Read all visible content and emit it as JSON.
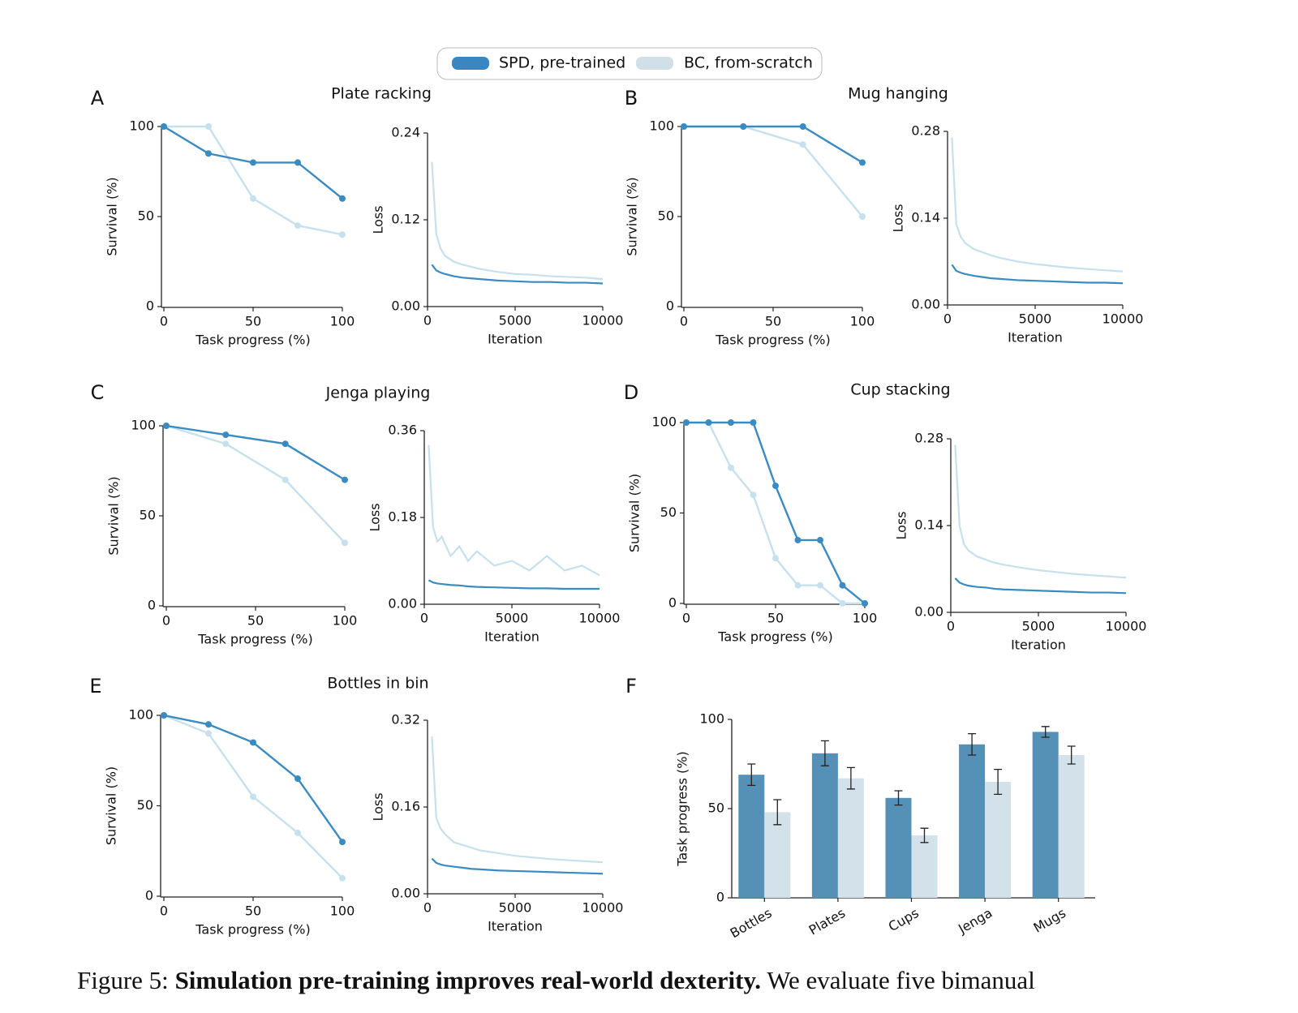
{
  "legend": [
    {
      "name": "SPD, pre-trained",
      "color": "#3a86c0"
    },
    {
      "name": "BC, from-scratch",
      "color": "#d0dfe8"
    }
  ],
  "chart_data": [
    {
      "type": "line",
      "panel": "A",
      "title": "Plate racking",
      "xlabel": "Task progress (%)",
      "ylabel": "Survival (%)",
      "markers": true,
      "x": [
        0,
        25,
        50,
        75,
        100
      ],
      "xlim": [
        0,
        100
      ],
      "xticks": [
        0,
        50,
        100
      ],
      "ylim": [
        0,
        100
      ],
      "yticks": [
        0,
        50,
        100
      ],
      "series": [
        {
          "color": "#3a8bc2",
          "values": [
            100,
            85,
            80,
            80,
            60
          ]
        },
        {
          "color": "#c6e0ee",
          "values": [
            100,
            100,
            60,
            45,
            40
          ]
        }
      ]
    },
    {
      "type": "line",
      "xlabel": "Iteration",
      "ylabel": "Loss",
      "markers": false,
      "x": [
        250,
        500,
        750,
        1000,
        1500,
        2000,
        2500,
        3000,
        4000,
        5000,
        6000,
        7000,
        8000,
        9000,
        10000
      ],
      "xlim": [
        0,
        10000
      ],
      "xticks": [
        0,
        5000,
        10000
      ],
      "ylim": [
        0,
        0.24
      ],
      "yticks": [
        {
          "value": 0,
          "label": "0.00"
        },
        0.12,
        0.24
      ],
      "series": [
        {
          "color": "#3a8bc2",
          "values": [
            0.058,
            0.05,
            0.047,
            0.045,
            0.042,
            0.04,
            0.039,
            0.038,
            0.036,
            0.035,
            0.034,
            0.034,
            0.033,
            0.033,
            0.032
          ]
        },
        {
          "color": "#c6e0ee",
          "values": [
            0.2,
            0.1,
            0.08,
            0.07,
            0.062,
            0.058,
            0.055,
            0.052,
            0.048,
            0.045,
            0.044,
            0.042,
            0.041,
            0.04,
            0.038
          ]
        }
      ]
    },
    {
      "type": "line",
      "panel": "B",
      "title": "Mug hanging",
      "xlabel": "Task progress (%)",
      "ylabel": "Survival (%)",
      "markers": true,
      "x": [
        0,
        33.3,
        66.7,
        100
      ],
      "xlim": [
        0,
        100
      ],
      "xticks": [
        0,
        50,
        100
      ],
      "ylim": [
        0,
        100
      ],
      "yticks": [
        0,
        50,
        100
      ],
      "series": [
        {
          "color": "#3a8bc2",
          "values": [
            100,
            100,
            100,
            80
          ]
        },
        {
          "color": "#c6e0ee",
          "values": [
            100,
            100,
            90,
            50
          ]
        }
      ]
    },
    {
      "type": "line",
      "xlabel": "Iteration",
      "ylabel": "Loss",
      "markers": false,
      "x": [
        250,
        500,
        750,
        1000,
        1500,
        2000,
        2500,
        3000,
        4000,
        5000,
        6000,
        7000,
        8000,
        9000,
        10000
      ],
      "xlim": [
        0,
        10000
      ],
      "xticks": [
        0,
        5000,
        10000
      ],
      "ylim": [
        0,
        0.28
      ],
      "yticks": [
        {
          "value": 0,
          "label": "0.00"
        },
        0.14,
        0.28
      ],
      "series": [
        {
          "color": "#3a8bc2",
          "values": [
            0.065,
            0.055,
            0.052,
            0.05,
            0.047,
            0.045,
            0.043,
            0.042,
            0.04,
            0.039,
            0.038,
            0.037,
            0.036,
            0.036,
            0.035
          ]
        },
        {
          "color": "#c6e0ee",
          "values": [
            0.27,
            0.13,
            0.11,
            0.1,
            0.09,
            0.085,
            0.08,
            0.076,
            0.07,
            0.066,
            0.063,
            0.06,
            0.058,
            0.056,
            0.054
          ]
        }
      ]
    },
    {
      "type": "line",
      "panel": "C",
      "title": "Jenga playing",
      "xlabel": "Task progress (%)",
      "ylabel": "Survival (%)",
      "markers": true,
      "x": [
        0,
        33.3,
        66.7,
        100
      ],
      "xlim": [
        0,
        100
      ],
      "xticks": [
        0,
        50,
        100
      ],
      "ylim": [
        0,
        100
      ],
      "yticks": [
        0,
        50,
        100
      ],
      "series": [
        {
          "color": "#3a8bc2",
          "values": [
            100,
            95,
            90,
            70
          ]
        },
        {
          "color": "#c6e0ee",
          "values": [
            100,
            90,
            70,
            35
          ]
        }
      ]
    },
    {
      "type": "line",
      "xlabel": "Iteration",
      "ylabel": "Loss",
      "markers": false,
      "x": [
        250,
        500,
        750,
        1000,
        1500,
        2000,
        2500,
        3000,
        4000,
        5000,
        6000,
        7000,
        8000,
        9000,
        10000
      ],
      "xlim": [
        0,
        10000
      ],
      "xticks": [
        0,
        5000,
        10000
      ],
      "ylim": [
        0,
        0.36
      ],
      "yticks": [
        {
          "value": 0,
          "label": "0.00"
        },
        0.18,
        0.36
      ],
      "series": [
        {
          "color": "#3a8bc2",
          "values": [
            0.05,
            0.045,
            0.043,
            0.042,
            0.04,
            0.039,
            0.037,
            0.036,
            0.035,
            0.034,
            0.033,
            0.033,
            0.032,
            0.032,
            0.032
          ]
        },
        {
          "color": "#c6e0ee",
          "values": [
            0.33,
            0.16,
            0.13,
            0.14,
            0.1,
            0.12,
            0.09,
            0.11,
            0.08,
            0.09,
            0.07,
            0.1,
            0.07,
            0.08,
            0.06
          ]
        }
      ]
    },
    {
      "type": "line",
      "panel": "D",
      "title": "Cup stacking",
      "xlabel": "Task progress (%)",
      "ylabel": "Survival (%)",
      "markers": true,
      "x": [
        0,
        12.5,
        25,
        37.5,
        50,
        62.5,
        75,
        87.5,
        100
      ],
      "xlim": [
        0,
        100
      ],
      "xticks": [
        0,
        50,
        100
      ],
      "ylim": [
        0,
        100
      ],
      "yticks": [
        0,
        50,
        100
      ],
      "series": [
        {
          "color": "#3a8bc2",
          "values": [
            100,
            100,
            100,
            100,
            65,
            35,
            35,
            10,
            0
          ]
        },
        {
          "color": "#c6e0ee",
          "values": [
            100,
            100,
            75,
            60,
            25,
            10,
            10,
            0,
            0
          ]
        }
      ]
    },
    {
      "type": "line",
      "xlabel": "Iteration",
      "ylabel": "Loss",
      "markers": false,
      "x": [
        250,
        500,
        750,
        1000,
        1500,
        2000,
        2500,
        3000,
        4000,
        5000,
        6000,
        7000,
        8000,
        9000,
        10000
      ],
      "xlim": [
        0,
        10000
      ],
      "xticks": [
        0,
        5000,
        10000
      ],
      "ylim": [
        0,
        0.28
      ],
      "yticks": [
        {
          "value": 0,
          "label": "0.00"
        },
        0.14,
        0.28
      ],
      "series": [
        {
          "color": "#3a8bc2",
          "values": [
            0.055,
            0.048,
            0.045,
            0.043,
            0.041,
            0.04,
            0.038,
            0.037,
            0.036,
            0.035,
            0.034,
            0.033,
            0.032,
            0.032,
            0.031
          ]
        },
        {
          "color": "#c6e0ee",
          "values": [
            0.27,
            0.14,
            0.11,
            0.1,
            0.09,
            0.085,
            0.08,
            0.077,
            0.072,
            0.068,
            0.065,
            0.062,
            0.06,
            0.058,
            0.056
          ]
        }
      ]
    },
    {
      "type": "line",
      "panel": "E",
      "title": "Bottles in bin",
      "xlabel": "Task progress (%)",
      "ylabel": "Survival (%)",
      "markers": true,
      "x": [
        0,
        25,
        50,
        75,
        100
      ],
      "xlim": [
        0,
        100
      ],
      "xticks": [
        0,
        50,
        100
      ],
      "ylim": [
        0,
        100
      ],
      "yticks": [
        0,
        50,
        100
      ],
      "series": [
        {
          "color": "#3a8bc2",
          "values": [
            100,
            95,
            85,
            65,
            30
          ]
        },
        {
          "color": "#c6e0ee",
          "values": [
            100,
            90,
            55,
            35,
            10
          ]
        }
      ]
    },
    {
      "type": "line",
      "xlabel": "Iteration",
      "ylabel": "Loss",
      "markers": false,
      "x": [
        250,
        500,
        750,
        1000,
        1500,
        2000,
        2500,
        3000,
        4000,
        5000,
        6000,
        7000,
        8000,
        9000,
        10000
      ],
      "xlim": [
        0,
        10000
      ],
      "xticks": [
        0,
        5000,
        10000
      ],
      "ylim": [
        0,
        0.32
      ],
      "yticks": [
        {
          "value": 0,
          "label": "0.00"
        },
        0.16,
        0.32
      ],
      "series": [
        {
          "color": "#3a8bc2",
          "values": [
            0.065,
            0.057,
            0.054,
            0.052,
            0.05,
            0.048,
            0.046,
            0.045,
            0.043,
            0.042,
            0.041,
            0.04,
            0.039,
            0.038,
            0.037
          ]
        },
        {
          "color": "#c6e0ee",
          "values": [
            0.29,
            0.14,
            0.12,
            0.11,
            0.095,
            0.09,
            0.085,
            0.08,
            0.075,
            0.07,
            0.067,
            0.064,
            0.062,
            0.06,
            0.058
          ]
        }
      ]
    },
    {
      "type": "bar",
      "panel": "F",
      "ylabel": "Task progress (%)",
      "categories": [
        "Bottles",
        "Plates",
        "Cups",
        "Jenga",
        "Mugs"
      ],
      "ylim": [
        0,
        100
      ],
      "yticks": [
        0,
        50,
        100
      ],
      "series": [
        {
          "color": "#5590b6",
          "values": [
            69,
            81,
            56,
            86,
            93
          ],
          "errors": [
            6,
            7,
            4,
            6,
            3
          ]
        },
        {
          "color": "#d3e1ea",
          "values": [
            48,
            67,
            35,
            65,
            80
          ],
          "errors": [
            7,
            6,
            4,
            7,
            5
          ]
        }
      ]
    }
  ],
  "caption": {
    "label": "Figure 5:",
    "bold": "Simulation pre-training improves real-world dexterity.",
    "text": "We evaluate five bimanual"
  }
}
